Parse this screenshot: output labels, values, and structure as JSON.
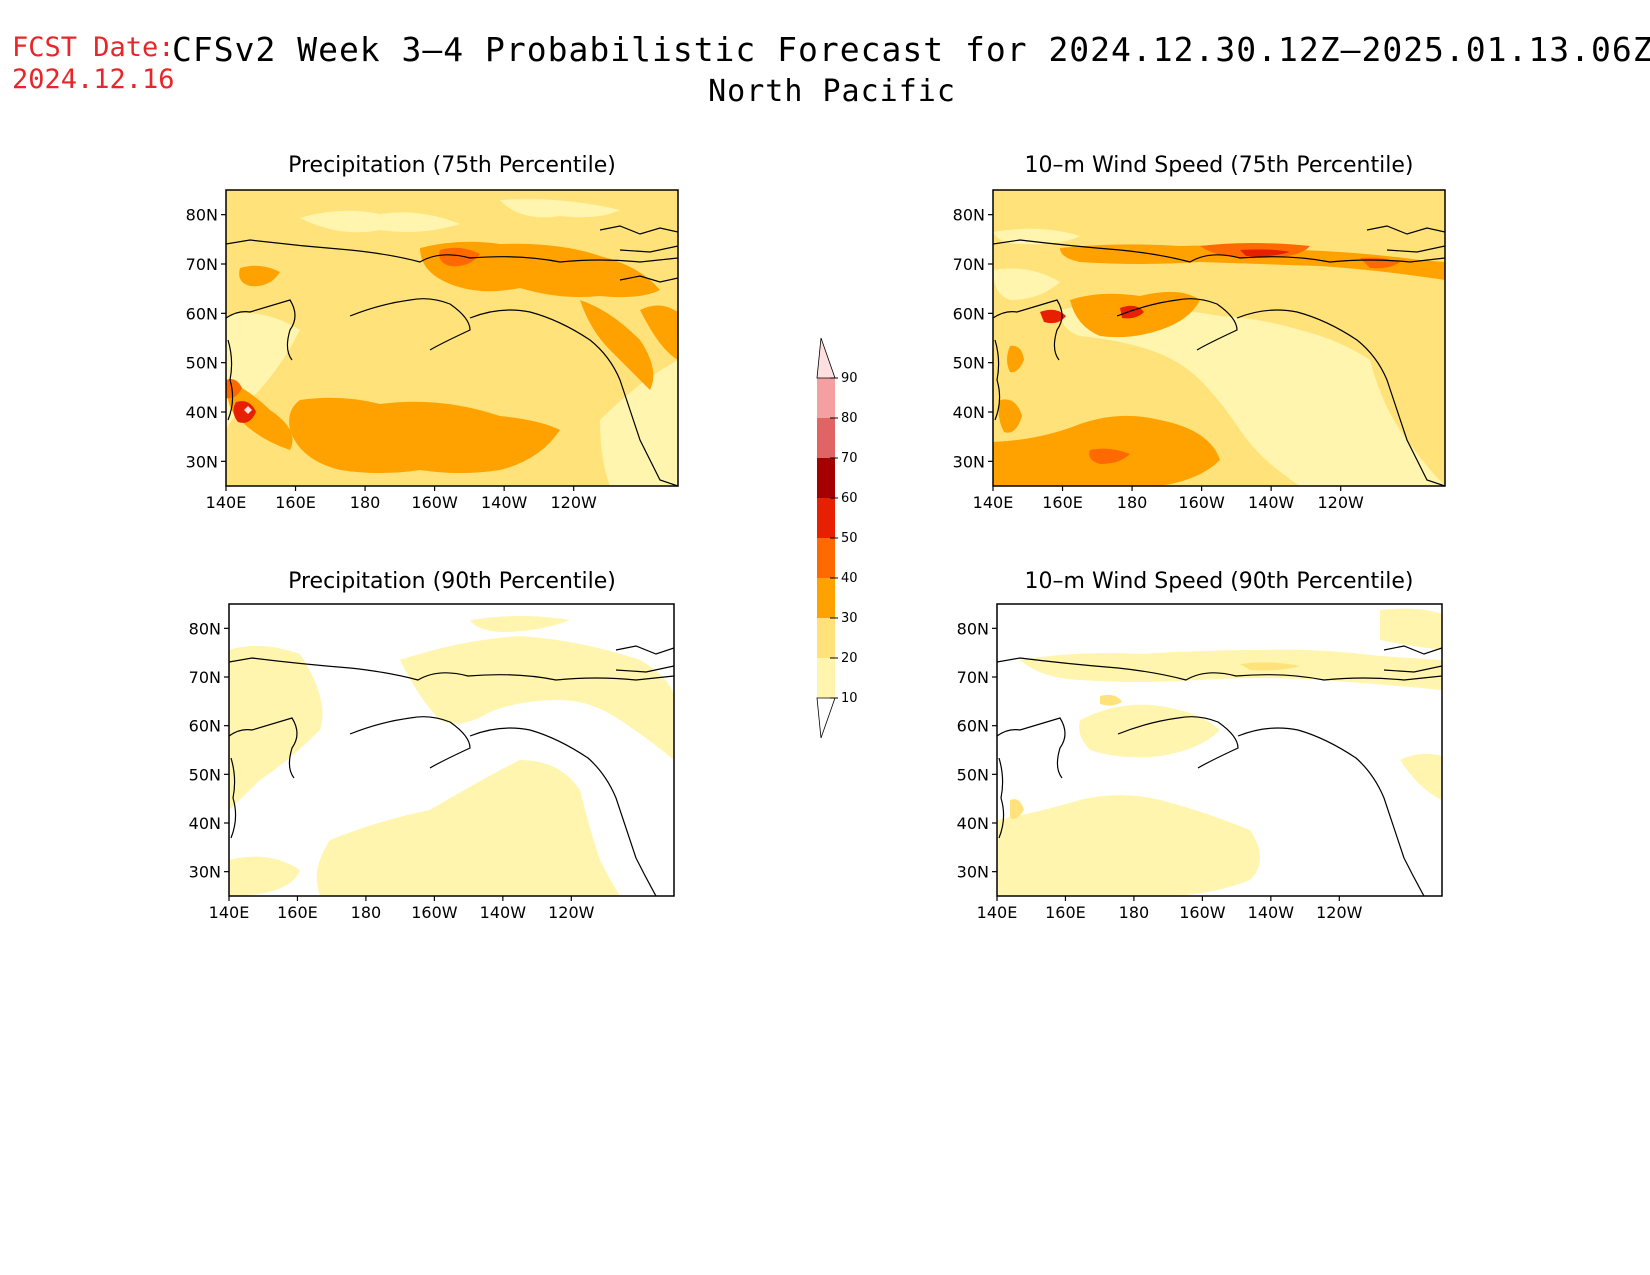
{
  "header": {
    "fcst_label": "FCST Date:",
    "fcst_date": "2024.12.16",
    "title": "CFSv2 Week 3–4 Probabilistic Forecast for 2024.12.30.12Z–2025.01.13.06Z",
    "region": "North Pacific"
  },
  "axes": {
    "x_ticks": [
      "140E",
      "160E",
      "180",
      "160W",
      "140W",
      "120W"
    ],
    "y_ticks": [
      "80N",
      "70N",
      "60N",
      "50N",
      "40N",
      "30N"
    ]
  },
  "panels": [
    {
      "id": "precip75",
      "title": "Precipitation (75th Percentile)"
    },
    {
      "id": "wind75",
      "title": "10–m Wind Speed (75th Percentile)"
    },
    {
      "id": "precip90",
      "title": "Precipitation (90th Percentile)"
    },
    {
      "id": "wind90",
      "title": "10–m Wind Speed (90th Percentile)"
    }
  ],
  "colorbar": {
    "levels": [
      "10",
      "20",
      "30",
      "40",
      "50",
      "60",
      "70",
      "80",
      "90"
    ],
    "colors": [
      "#fff5ae",
      "#ffe37a",
      "#ffa200",
      "#ff6a00",
      "#e62000",
      "#a40000",
      "#e06464",
      "#f5a0a0",
      "#ffe0e0"
    ]
  }
}
